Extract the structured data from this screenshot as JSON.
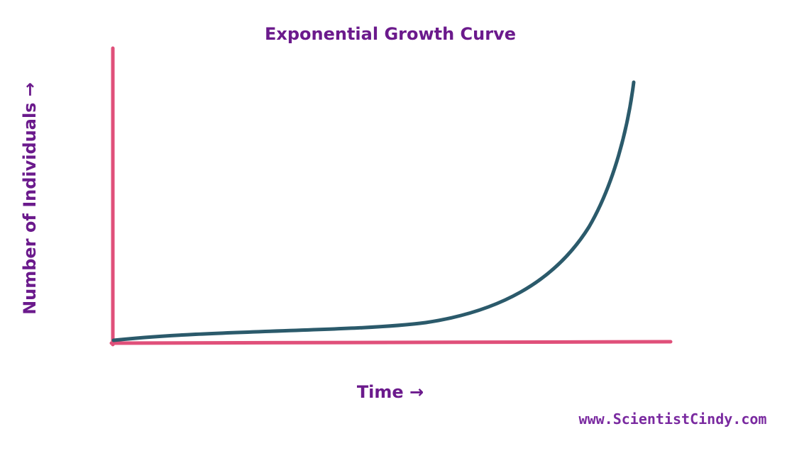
{
  "title": "Exponential Growth Curve",
  "y_axis_label": "Number of Individuals →",
  "x_axis_label": "Time →",
  "watermark": "www.ScientistCindy.com"
}
